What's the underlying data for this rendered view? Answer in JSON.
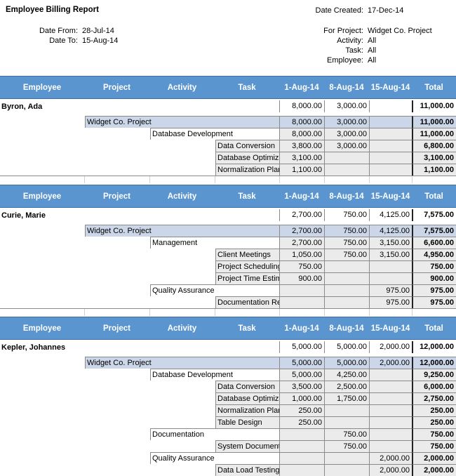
{
  "report": {
    "title": "Employee Billing Report",
    "date_created_label": "Date Created:",
    "date_created": "17-Dec-14",
    "date_from_label": "Date From:",
    "date_from": "28-Jul-14",
    "date_to_label": "Date To:",
    "date_to": "15-Aug-14",
    "for_project_label": "For Project:",
    "for_project": "Widget Co. Project",
    "activity_label": "Activity:",
    "activity": "All",
    "task_label": "Task:",
    "task": "All",
    "employee_label": "Employee:",
    "employee": "All"
  },
  "columns": [
    "Employee",
    "Project",
    "Activity",
    "Task",
    "1-Aug-14",
    "8-Aug-14",
    "15-Aug-14",
    "Total"
  ],
  "sections": [
    {
      "rows": [
        {
          "level": 0,
          "label": "Byron, Ada",
          "v": [
            "8,000.00",
            "3,000.00",
            ""
          ],
          "total": "11,000.00"
        },
        {
          "level": 1,
          "label": "Widget Co. Project",
          "v": [
            "8,000.00",
            "3,000.00",
            ""
          ],
          "total": "11,000.00"
        },
        {
          "level": 2,
          "label": "Database Development",
          "v": [
            "8,000.00",
            "3,000.00",
            ""
          ],
          "total": "11,000.00"
        },
        {
          "level": 3,
          "label": "Data Conversion",
          "v": [
            "3,800.00",
            "3,000.00",
            ""
          ],
          "total": "6,800.00"
        },
        {
          "level": 3,
          "label": "Database Optimization",
          "v": [
            "3,100.00",
            "",
            ""
          ],
          "total": "3,100.00"
        },
        {
          "level": 3,
          "label": "Normalization Plan",
          "v": [
            "1,100.00",
            "",
            ""
          ],
          "total": "1,100.00"
        }
      ]
    },
    {
      "rows": [
        {
          "level": 0,
          "label": "Curie, Marie",
          "v": [
            "2,700.00",
            "750.00",
            "4,125.00"
          ],
          "total": "7,575.00"
        },
        {
          "level": 1,
          "label": "Widget Co. Project",
          "v": [
            "2,700.00",
            "750.00",
            "4,125.00"
          ],
          "total": "7,575.00"
        },
        {
          "level": 2,
          "label": "Management",
          "v": [
            "2,700.00",
            "750.00",
            "3,150.00"
          ],
          "total": "6,600.00"
        },
        {
          "level": 3,
          "label": "Client Meetings",
          "v": [
            "1,050.00",
            "750.00",
            "3,150.00"
          ],
          "total": "4,950.00"
        },
        {
          "level": 3,
          "label": "Project Scheduling",
          "v": [
            "750.00",
            "",
            ""
          ],
          "total": "750.00"
        },
        {
          "level": 3,
          "label": "Project Time Estimate",
          "v": [
            "900.00",
            "",
            ""
          ],
          "total": "900.00"
        },
        {
          "level": 2,
          "label": "Quality Assurance",
          "v": [
            "",
            "",
            "975.00"
          ],
          "total": "975.00"
        },
        {
          "level": 3,
          "label": "Documentation Review",
          "v": [
            "",
            "",
            "975.00"
          ],
          "total": "975.00"
        }
      ]
    },
    {
      "rows": [
        {
          "level": 0,
          "label": "Kepler, Johannes",
          "v": [
            "5,000.00",
            "5,000.00",
            "2,000.00"
          ],
          "total": "12,000.00"
        },
        {
          "level": 1,
          "label": "Widget Co. Project",
          "v": [
            "5,000.00",
            "5,000.00",
            "2,000.00"
          ],
          "total": "12,000.00"
        },
        {
          "level": 2,
          "label": "Database Development",
          "v": [
            "5,000.00",
            "4,250.00",
            ""
          ],
          "total": "9,250.00"
        },
        {
          "level": 3,
          "label": "Data Conversion",
          "v": [
            "3,500.00",
            "2,500.00",
            ""
          ],
          "total": "6,000.00"
        },
        {
          "level": 3,
          "label": "Database Optimization",
          "v": [
            "1,000.00",
            "1,750.00",
            ""
          ],
          "total": "2,750.00"
        },
        {
          "level": 3,
          "label": "Normalization Plan",
          "v": [
            "250.00",
            "",
            ""
          ],
          "total": "250.00"
        },
        {
          "level": 3,
          "label": "Table Design",
          "v": [
            "250.00",
            "",
            ""
          ],
          "total": "250.00"
        },
        {
          "level": 2,
          "label": "Documentation",
          "v": [
            "",
            "750.00",
            ""
          ],
          "total": "750.00"
        },
        {
          "level": 3,
          "label": "System Documentation",
          "v": [
            "",
            "750.00",
            ""
          ],
          "total": "750.00"
        },
        {
          "level": 2,
          "label": "Quality Assurance",
          "v": [
            "",
            "",
            "2,000.00"
          ],
          "total": "2,000.00"
        },
        {
          "level": 3,
          "label": "Data Load Testing",
          "v": [
            "",
            "",
            "2,000.00"
          ],
          "total": "2,000.00"
        }
      ]
    }
  ]
}
